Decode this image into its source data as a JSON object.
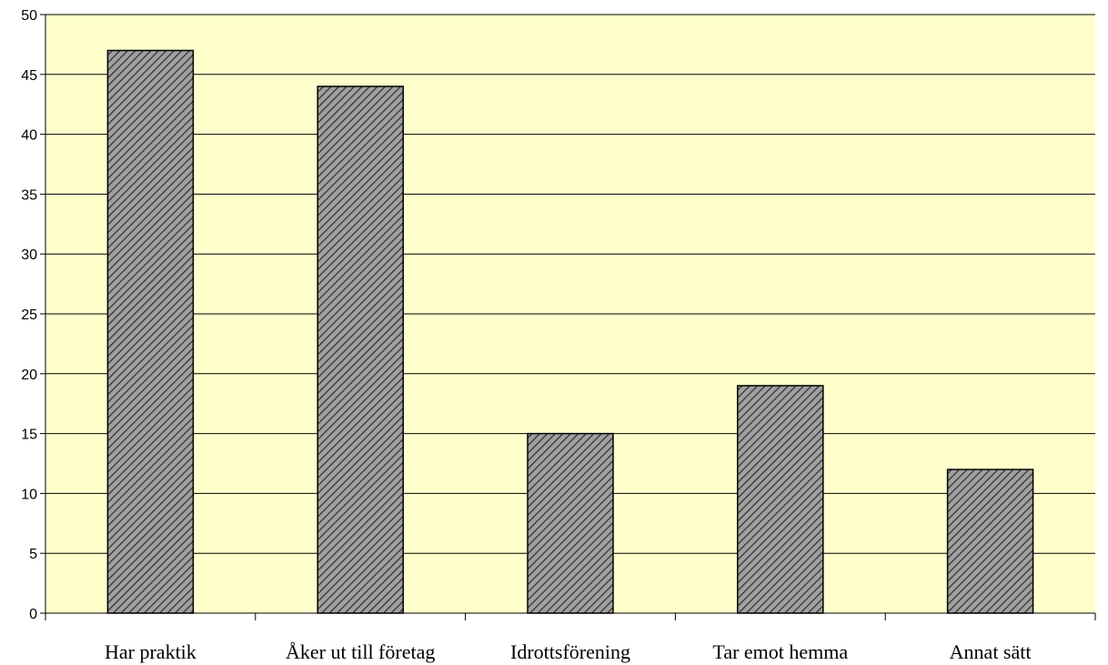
{
  "chart_data": {
    "type": "bar",
    "categories": [
      "Har praktik",
      "Åker ut till företag",
      "Idrottsförening",
      "Tar emot hemma",
      "Annat sätt"
    ],
    "values": [
      47,
      44,
      15,
      19,
      12
    ],
    "ylim": [
      0,
      50
    ],
    "yticks": [
      0,
      5,
      10,
      15,
      20,
      25,
      30,
      35,
      40,
      45,
      50
    ],
    "grid": true,
    "legend": "none",
    "colors": {
      "plot_background": "#ffffcc",
      "bar_fill": "#a0a0a0",
      "bar_hatch": "#303030",
      "bar_edge": "#000000",
      "gridline": "#000000",
      "axis": "#000000"
    }
  }
}
